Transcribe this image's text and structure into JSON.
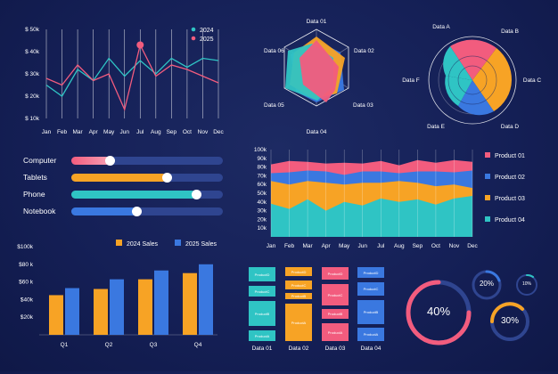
{
  "colors": {
    "pink": "#f25c7e",
    "teal": "#2fc4c4",
    "orange": "#f7a325",
    "blue": "#3a78e0",
    "track": "#2f4590"
  },
  "line_chart": {
    "y_ticks": [
      "$ 50k",
      "$ 40k",
      "$ 30k",
      "$ 20k",
      "$ 10k"
    ],
    "legend": [
      "2024",
      "2025"
    ]
  },
  "devices": [
    {
      "label": "Computer",
      "value": 0.26,
      "color": "pink"
    },
    {
      "label": "Tablets",
      "value": 0.63,
      "color": "orange"
    },
    {
      "label": "Phone",
      "value": 0.82,
      "color": "teal"
    },
    {
      "label": "Notebook",
      "value": 0.43,
      "color": "blue"
    }
  ],
  "bar_chart": {
    "y_ticks": [
      "$100k",
      "$80 k",
      "$60 k",
      "$40k",
      "$20k"
    ],
    "legend": [
      "2024 Sales",
      "2025 Sales"
    ]
  },
  "radar": {
    "labels": [
      "Data 01",
      "Data 02",
      "Data 03",
      "Data 04",
      "Data 05",
      "Data 06"
    ]
  },
  "rose": {
    "labels": [
      "Data A",
      "Data B",
      "Data C",
      "Data D",
      "Data E",
      "Data F"
    ]
  },
  "area_chart": {
    "y_ticks": [
      "100k",
      "90k",
      "80k",
      "70k",
      "60k",
      "50k",
      "40k",
      "30k",
      "20k",
      "10k"
    ],
    "legend": [
      "Product 01",
      "Product 02",
      "Product 03",
      "Product 04"
    ]
  },
  "blocks": {
    "columns": [
      {
        "label": "Data 01",
        "items": [
          "ProductD",
          "ProductC",
          "ProductB",
          "ProductA"
        ]
      },
      {
        "label": "Data 02",
        "items": [
          "ProductD",
          "ProductC",
          "ProductB",
          "ProductA"
        ]
      },
      {
        "label": "Data 03",
        "items": [
          "ProductD",
          "ProductC",
          "ProductB",
          "ProductA"
        ]
      },
      {
        "label": "Data 04",
        "items": [
          "ProductD",
          "ProductC",
          "ProductB",
          "ProductA"
        ]
      }
    ]
  },
  "donuts": [
    {
      "label": "40%",
      "value": 0.4
    },
    {
      "label": "20%",
      "value": 0.2
    },
    {
      "label": "10%",
      "value": 0.1
    },
    {
      "label": "30%",
      "value": 0.3
    }
  ],
  "chart_data": [
    {
      "type": "line",
      "categories": [
        "Jan",
        "Feb",
        "Mar",
        "Apr",
        "May",
        "Jun",
        "Jul",
        "Aug",
        "Sep",
        "Oct",
        "Nov",
        "Dec"
      ],
      "ylim": [
        10,
        50
      ],
      "series": [
        {
          "name": "2024",
          "color": "#2fc4c4",
          "values": [
            25,
            20,
            32,
            27,
            37,
            29,
            36,
            30,
            37,
            33,
            37,
            36
          ]
        },
        {
          "name": "2025",
          "color": "#f25c7e",
          "values": [
            28,
            25,
            34,
            27,
            30,
            14,
            43,
            29,
            34,
            32,
            29,
            26
          ]
        }
      ]
    },
    {
      "type": "bar",
      "categories": [
        "Q1",
        "Q2",
        "Q3",
        "Q4"
      ],
      "ylim": [
        0,
        100
      ],
      "series": [
        {
          "name": "2024 Sales",
          "color": "#f7a325",
          "values": [
            45,
            52,
            63,
            70
          ]
        },
        {
          "name": "2025 Sales",
          "color": "#3a78e0",
          "values": [
            53,
            63,
            73,
            80
          ]
        }
      ]
    },
    {
      "type": "area",
      "categories": [
        "Jan",
        "Feb",
        "Mar",
        "Apr",
        "May",
        "Jun",
        "Jul",
        "Aug",
        "Sep",
        "Oct",
        "Nov",
        "Dec"
      ],
      "ylim": [
        0,
        100
      ],
      "series": [
        {
          "name": "Product 04",
          "color": "#2fc4c4",
          "values": [
            38,
            32,
            43,
            30,
            40,
            36,
            44,
            40,
            43,
            37,
            44,
            47
          ]
        },
        {
          "name": "Product 03",
          "color": "#f7a325",
          "values": [
            64,
            60,
            64,
            62,
            60,
            62,
            62,
            64,
            62,
            58,
            60,
            56
          ]
        },
        {
          "name": "Product 02",
          "color": "#3a78e0",
          "values": [
            73,
            74,
            76,
            75,
            71,
            75,
            75,
            73,
            75,
            75,
            74,
            76
          ]
        },
        {
          "name": "Product 01",
          "color": "#f25c7e",
          "values": [
            83,
            87,
            86,
            84,
            85,
            84,
            87,
            82,
            88,
            85,
            88,
            86
          ]
        }
      ]
    }
  ]
}
